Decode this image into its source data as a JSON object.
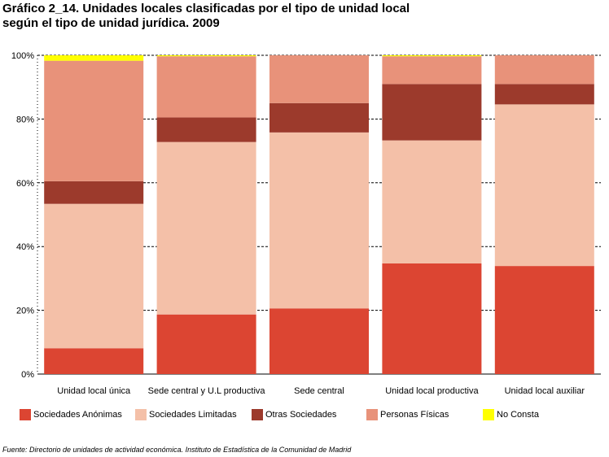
{
  "title": {
    "line1": "Gráfico 2_14. Unidades locales clasificadas por el tipo de unidad local",
    "line2": "según el tipo de unidad jurídica. 2009"
  },
  "source": "Fuente: Directorio de unidades de actividad económica. Instituto de Estadística de la Comunidad de Madrid",
  "chart_data": {
    "type": "bar",
    "stacked": true,
    "percent": true,
    "categories": [
      "Unidad local única",
      "Sede central y U.L productiva",
      "Sede central",
      "Unidad local productiva",
      "Unidad local auxiliar"
    ],
    "series": [
      {
        "name": "Sociedades Anónimas",
        "color": "#dc4532",
        "values": [
          8.1,
          18.7,
          20.6,
          34.7,
          33.9
        ]
      },
      {
        "name": "Sociedades Limitadas",
        "color": "#f4c0a8",
        "values": [
          45.3,
          54.1,
          55.2,
          38.6,
          50.7
        ]
      },
      {
        "name": "Otras Sociedades",
        "color": "#9c3a2c",
        "values": [
          7.1,
          7.7,
          9.2,
          17.7,
          6.4
        ]
      },
      {
        "name": "Personas Físicas",
        "color": "#e8927a",
        "values": [
          37.8,
          19.2,
          15.0,
          8.7,
          9.0
        ]
      },
      {
        "name": "No Consta",
        "color": "#ffff00",
        "values": [
          1.7,
          0.3,
          0.0,
          0.3,
          0.0
        ]
      }
    ],
    "y_ticks": [
      "0%",
      "20%",
      "40%",
      "60%",
      "80%",
      "100%"
    ],
    "y_tick_values": [
      0,
      20,
      40,
      60,
      80,
      100
    ],
    "ylim": [
      0,
      100
    ],
    "grid": true,
    "legend_position": "bottom"
  }
}
